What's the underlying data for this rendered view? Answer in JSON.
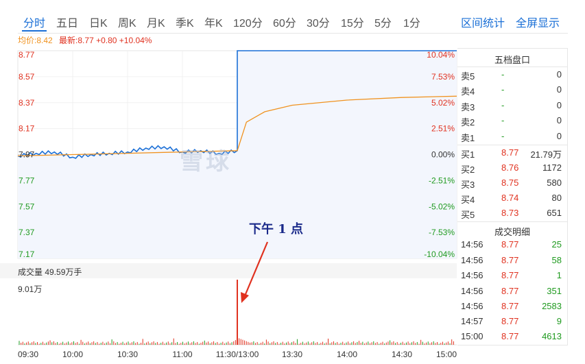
{
  "tabs": [
    "分时",
    "五日",
    "日K",
    "周K",
    "月K",
    "季K",
    "年K",
    "120分",
    "60分",
    "30分",
    "15分",
    "5分",
    "1分"
  ],
  "right_links": [
    "区间统计",
    "全屏显示"
  ],
  "info": {
    "avg_label": "均价:8.42",
    "latest_label": "最新:8.77 +0.80 +10.04%"
  },
  "price_axis": [
    "8.77",
    "8.57",
    "8.37",
    "8.17",
    "7.97",
    "7.77",
    "7.57",
    "7.37",
    "7.17"
  ],
  "pct_axis": [
    "10.04%",
    "7.53%",
    "5.02%",
    "2.51%",
    "0.00%",
    "-2.51%",
    "-5.02%",
    "-7.53%",
    "-10.04%"
  ],
  "volume": {
    "title": "成交量 49.59万手",
    "max_label": "9.01万"
  },
  "time_axis": [
    "09:30",
    "10:00",
    "10:30",
    "11:00",
    "11:30/13:00",
    "13:30",
    "14:00",
    "14:30",
    "15:00"
  ],
  "watermark": "雪球",
  "annotation": "下午 1 点",
  "colors": {
    "price_line": "#1a6fd6",
    "avg_line": "#f0921e",
    "up": "#e0311f",
    "down": "#1f9a1f",
    "accent": "#1a6fd6"
  },
  "chart_data": {
    "type": "line",
    "y_range": [
      7.17,
      8.77
    ],
    "prev_close": 7.97,
    "series": [
      {
        "name": "",
        "x": [
          "09:30",
          "09:40",
          "09:50",
          "10:00",
          "10:10",
          "10:20",
          "10:30",
          "10:40",
          "10:50",
          "11:00",
          "11:10",
          "11:20",
          "11:30/13:00",
          "13:00",
          "13:30",
          "14:00",
          "14:30",
          "15:00"
        ],
        "values": [
          7.96,
          7.98,
          7.99,
          7.95,
          7.97,
          7.98,
          7.99,
          8.02,
          8.03,
          7.99,
          8.0,
          7.98,
          8.0,
          8.77,
          8.77,
          8.77,
          8.77,
          8.77
        ]
      },
      {
        "name": "",
        "x": [
          "09:30",
          "10:00",
          "10:30",
          "11:00",
          "11:30/13:00",
          "13:05",
          "13:15",
          "13:30",
          "14:00",
          "14:30",
          "15:00"
        ],
        "values": [
          7.96,
          7.97,
          7.98,
          7.99,
          8.0,
          8.22,
          8.3,
          8.35,
          8.39,
          8.41,
          8.42
        ]
      }
    ],
    "volume_max": 9.01,
    "volume_unit": "万"
  },
  "order_book": {
    "title": "五档盘口",
    "asks": [
      {
        "label": "卖5",
        "price": "-",
        "vol": "0"
      },
      {
        "label": "卖4",
        "price": "-",
        "vol": "0"
      },
      {
        "label": "卖3",
        "price": "-",
        "vol": "0"
      },
      {
        "label": "卖2",
        "price": "-",
        "vol": "0"
      },
      {
        "label": "卖1",
        "price": "-",
        "vol": "0"
      }
    ],
    "bids": [
      {
        "label": "买1",
        "price": "8.77",
        "vol": "21.79万"
      },
      {
        "label": "买2",
        "price": "8.76",
        "vol": "1172"
      },
      {
        "label": "买3",
        "price": "8.75",
        "vol": "580"
      },
      {
        "label": "买4",
        "price": "8.74",
        "vol": "80"
      },
      {
        "label": "买5",
        "price": "8.73",
        "vol": "651"
      }
    ]
  },
  "trades": {
    "title": "成交明细",
    "rows": [
      {
        "time": "14:56",
        "price": "8.77",
        "vol": "25"
      },
      {
        "time": "14:56",
        "price": "8.77",
        "vol": "58"
      },
      {
        "time": "14:56",
        "price": "8.77",
        "vol": "1"
      },
      {
        "time": "14:56",
        "price": "8.77",
        "vol": "351"
      },
      {
        "time": "14:56",
        "price": "8.77",
        "vol": "2583"
      },
      {
        "time": "14:57",
        "price": "8.77",
        "vol": "9"
      },
      {
        "time": "15:00",
        "price": "8.77",
        "vol": "4613"
      }
    ]
  }
}
